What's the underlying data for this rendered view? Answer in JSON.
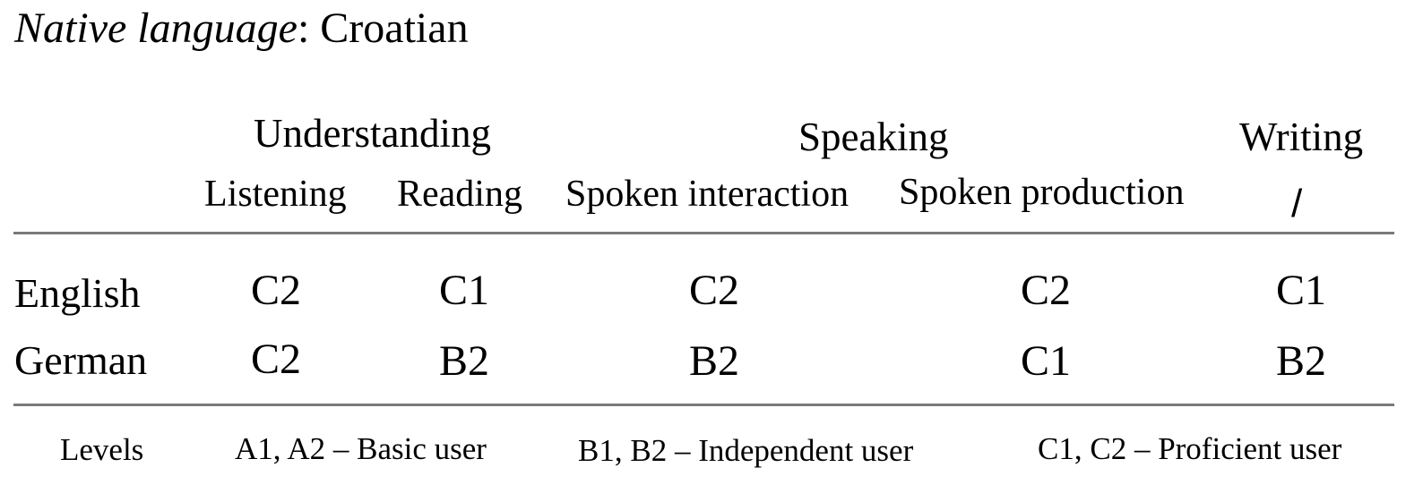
{
  "native_language": {
    "label": "Native language",
    "separator": ": ",
    "value": "Croatian"
  },
  "table": {
    "group_headers": {
      "understanding": "Understanding",
      "speaking": "Speaking",
      "writing": "Writing"
    },
    "sub_headers": {
      "listening": "Listening",
      "reading": "Reading",
      "spoken_interaction": "Spoken interaction",
      "spoken_production": "Spoken production",
      "writing_mark": "/"
    },
    "rows": [
      {
        "language": "English",
        "listening": "C2",
        "reading": "C1",
        "spoken_interaction": "C2",
        "spoken_production": "C2",
        "writing": "C1"
      },
      {
        "language": "German",
        "listening": "C2",
        "reading": "B2",
        "spoken_interaction": "B2",
        "spoken_production": "C1",
        "writing": "B2"
      }
    ]
  },
  "legend": {
    "title": "Levels",
    "basic": "A1, A2 – Basic user",
    "independent": "B1, B2 – Independent user",
    "proficient": "C1, C2 – Proficient user"
  }
}
